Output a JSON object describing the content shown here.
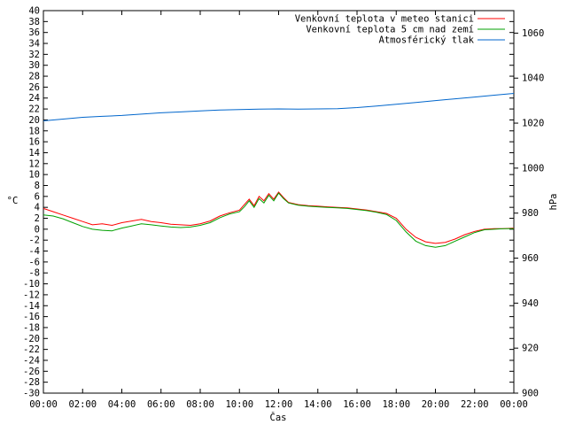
{
  "chart_data": {
    "type": "line",
    "xlabel": "Čas",
    "ylabel": "°C",
    "y2label": "hPa",
    "x_ticks": [
      "00:00",
      "02:00",
      "04:00",
      "06:00",
      "08:00",
      "10:00",
      "12:00",
      "14:00",
      "16:00",
      "18:00",
      "20:00",
      "22:00",
      "00:00"
    ],
    "xlim": [
      0,
      24
    ],
    "ylim": [
      -30,
      40
    ],
    "y2lim": [
      900,
      1070
    ],
    "y_ticks": [
      -30,
      -28,
      -26,
      -24,
      -22,
      -20,
      -18,
      -16,
      -14,
      -12,
      -10,
      -8,
      -6,
      -4,
      -2,
      0,
      2,
      4,
      6,
      8,
      10,
      12,
      14,
      16,
      18,
      20,
      22,
      24,
      26,
      28,
      30,
      32,
      34,
      36,
      38,
      40
    ],
    "y2_ticks": [
      900,
      920,
      940,
      960,
      980,
      1000,
      1020,
      1040,
      1060
    ],
    "grid": false,
    "legend_position": "top-right",
    "series": [
      {
        "name": "Venkovní teplota v meteo stanici",
        "color": "#ff0000",
        "axis": "left",
        "x": [
          0,
          0.5,
          1,
          1.5,
          2,
          2.5,
          3,
          3.5,
          4,
          4.5,
          5,
          5.5,
          6,
          6.5,
          7,
          7.5,
          8,
          8.5,
          9,
          9.5,
          10,
          10.25,
          10.5,
          10.75,
          11,
          11.25,
          11.5,
          11.75,
          12,
          12.25,
          12.5,
          13,
          13.5,
          14,
          14.5,
          15,
          15.5,
          16,
          16.5,
          17,
          17.5,
          18,
          18.5,
          19,
          19.5,
          20,
          20.5,
          21,
          21.5,
          22,
          22.5,
          23,
          23.5,
          24
        ],
        "y": [
          3.8,
          3.2,
          2.6,
          2.0,
          1.4,
          0.8,
          1.0,
          0.7,
          1.2,
          1.5,
          1.8,
          1.4,
          1.2,
          0.9,
          0.8,
          0.7,
          1.0,
          1.5,
          2.4,
          3.0,
          3.5,
          4.5,
          5.5,
          4.3,
          6.0,
          5.2,
          6.5,
          5.5,
          6.8,
          5.8,
          4.9,
          4.5,
          4.3,
          4.2,
          4.1,
          4.0,
          3.9,
          3.7,
          3.5,
          3.2,
          2.9,
          2.0,
          0.0,
          -1.5,
          -2.3,
          -2.6,
          -2.4,
          -1.8,
          -1.0,
          -0.4,
          0.0,
          0.1,
          0.1,
          0.2
        ]
      },
      {
        "name": "Venkovní teplota 5 cm nad zemí",
        "color": "#00a000",
        "axis": "left",
        "x": [
          0,
          0.5,
          1,
          1.5,
          2,
          2.5,
          3,
          3.5,
          4,
          4.5,
          5,
          5.5,
          6,
          6.5,
          7,
          7.5,
          8,
          8.5,
          9,
          9.5,
          10,
          10.25,
          10.5,
          10.75,
          11,
          11.25,
          11.5,
          11.75,
          12,
          12.25,
          12.5,
          13,
          13.5,
          14,
          14.5,
          15,
          15.5,
          16,
          16.5,
          17,
          17.5,
          18,
          18.5,
          19,
          19.5,
          20,
          20.5,
          21,
          21.5,
          22,
          22.5,
          23,
          23.5,
          24
        ],
        "y": [
          2.6,
          2.4,
          1.9,
          1.2,
          0.5,
          0.0,
          -0.2,
          -0.3,
          0.2,
          0.6,
          1.0,
          0.8,
          0.6,
          0.4,
          0.3,
          0.4,
          0.7,
          1.2,
          2.1,
          2.8,
          3.2,
          4.1,
          5.2,
          4.0,
          5.6,
          4.8,
          6.2,
          5.2,
          6.6,
          5.6,
          4.8,
          4.4,
          4.2,
          4.1,
          4.0,
          3.9,
          3.8,
          3.6,
          3.4,
          3.1,
          2.7,
          1.6,
          -0.5,
          -2.2,
          -3.0,
          -3.3,
          -3.0,
          -2.2,
          -1.4,
          -0.6,
          -0.1,
          0.0,
          0.1,
          0.1
        ]
      },
      {
        "name": "Atmosférický tlak",
        "color": "#0066cc",
        "axis": "right",
        "x": [
          0,
          1,
          2,
          3,
          4,
          5,
          6,
          7,
          8,
          9,
          10,
          11,
          12,
          13,
          14,
          15,
          16,
          17,
          18,
          19,
          20,
          21,
          22,
          23,
          24
        ],
        "y": [
          1021.0,
          1021.8,
          1022.6,
          1023.0,
          1023.4,
          1024.0,
          1024.6,
          1025.0,
          1025.4,
          1025.8,
          1026.0,
          1026.2,
          1026.3,
          1026.2,
          1026.3,
          1026.4,
          1026.9,
          1027.6,
          1028.4,
          1029.2,
          1030.0,
          1030.8,
          1031.6,
          1032.4,
          1033.2
        ]
      }
    ]
  }
}
